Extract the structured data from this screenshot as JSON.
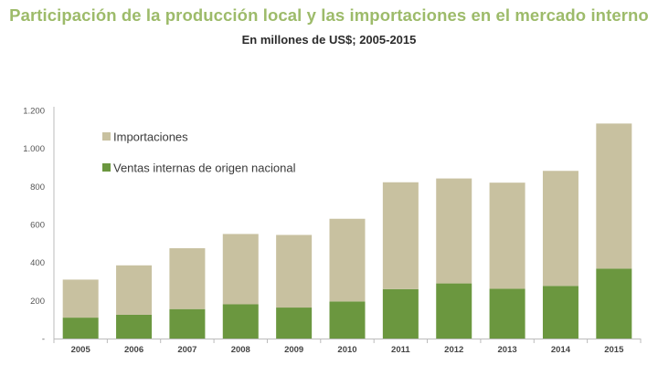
{
  "header": {
    "title": "Participación de la producción local y las importaciones en el mercado interno",
    "subtitle": "En millones de US$; 2005-2015"
  },
  "colors": {
    "importaciones": "#c8c1a0",
    "nacional": "#6b973f",
    "axis": "#bbbbbb",
    "title": "#9dbb6a"
  },
  "chart_data": {
    "type": "bar",
    "stacked": true,
    "categories": [
      "2005",
      "2006",
      "2007",
      "2008",
      "2009",
      "2010",
      "2011",
      "2012",
      "2013",
      "2014",
      "2015"
    ],
    "series": [
      {
        "name": "Ventas internas de origen nacional",
        "color": "#6b973f",
        "values": [
          110,
          125,
          155,
          180,
          163,
          195,
          260,
          290,
          262,
          277,
          368
        ]
      },
      {
        "name": "Importaciones",
        "color": "#c8c1a0",
        "values": [
          200,
          260,
          320,
          370,
          382,
          435,
          562,
          552,
          558,
          605,
          763
        ]
      }
    ],
    "ylim": [
      0,
      1200
    ],
    "yticks": [
      {
        "value": 0,
        "label": "-"
      },
      {
        "value": 200,
        "label": "200"
      },
      {
        "value": 400,
        "label": "400"
      },
      {
        "value": 600,
        "label": "600"
      },
      {
        "value": 800,
        "label": "800"
      },
      {
        "value": 1000,
        "label": "1.000"
      },
      {
        "value": 1200,
        "label": "1.200"
      }
    ],
    "legend_order": [
      "Importaciones",
      "Ventas internas de origen nacional"
    ],
    "legend_position": "top-left",
    "grid": false
  }
}
